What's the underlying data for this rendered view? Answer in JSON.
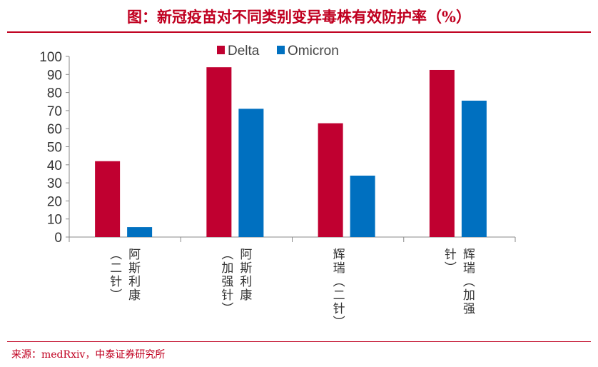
{
  "title": "图：新冠疫苗对不同类别变异毒株有效防护率（%）",
  "source": "来源：medRxiv，中泰证券研究所",
  "chart_data": {
    "type": "bar",
    "categories": [
      "阿斯利康（二针）",
      "阿斯利康（加强针）",
      "辉瑞（二针）",
      "辉瑞（加强针）"
    ],
    "series": [
      {
        "name": "Delta",
        "color": "#c00030",
        "values": [
          42,
          94,
          63,
          92.5
        ]
      },
      {
        "name": "Omicron",
        "color": "#0070c0",
        "values": [
          5.5,
          71,
          34,
          75.5
        ]
      }
    ],
    "ylim": [
      0,
      100
    ],
    "yticks": [
      0,
      10,
      20,
      30,
      40,
      50,
      60,
      70,
      80,
      90,
      100
    ],
    "legend": "top",
    "grid": false
  }
}
